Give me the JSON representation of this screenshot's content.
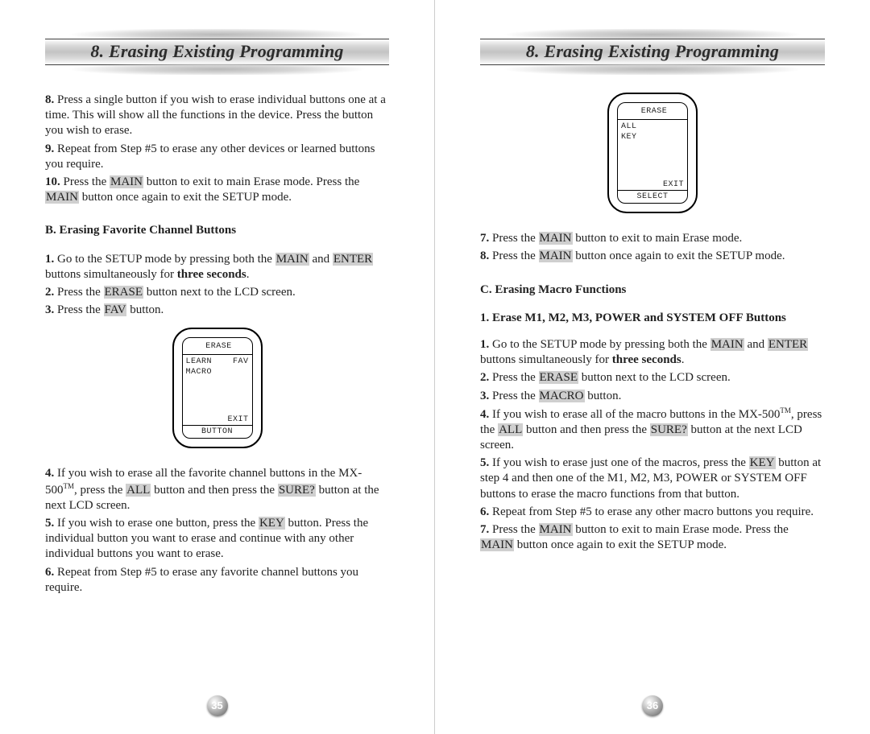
{
  "chapter_title": "8. Erasing Existing Programming",
  "colors": {
    "highlight_bg": "#cfcfcf",
    "text": "#222222",
    "bar_border": "#3e3e3e",
    "bar_grad_light": "#fefefe",
    "bar_grad_mid": "#c3c3c3",
    "ball_light": "#fdfdfd",
    "ball_dark": "#555555"
  },
  "fonts": {
    "body_family": "Times New Roman",
    "body_size_pt": 11,
    "title_family": "Georgia",
    "title_size_pt": 17,
    "lcd_family": "Lucida Console",
    "lcd_size_pt": 7
  },
  "left": {
    "page_number": "35",
    "steps_a": [
      {
        "n": "8.",
        "t1": " Press a single button if you wish to erase individual buttons one at a time. This will show all the functions in the device. Press the button you wish to erase."
      },
      {
        "n": "9.",
        "t1": " Repeat from Step #5 to erase any other devices or learned buttons you require."
      },
      {
        "n": "10.",
        "t_parts": [
          " Press the ",
          {
            "hl": "MAIN"
          },
          " button to exit to main Erase mode. Press the ",
          {
            "hl": "MAIN"
          },
          " button once again to exit the SETUP mode."
        ]
      }
    ],
    "section_b_title": "B. Erasing Favorite Channel Buttons",
    "steps_b_top": [
      {
        "n": "1.",
        "t_parts": [
          " Go to the SETUP mode by pressing both the ",
          {
            "hl": "MAIN"
          },
          " and ",
          {
            "hl": "ENTER"
          },
          " buttons simultaneously for ",
          {
            "b": "three seconds"
          },
          "."
        ]
      },
      {
        "n": "2.",
        "t_parts": [
          " Press the ",
          {
            "hl": "ERASE"
          },
          " button next to the LCD screen."
        ]
      },
      {
        "n": "3.",
        "t_parts": [
          " Press the ",
          {
            "hl": "FAV"
          },
          " button."
        ]
      }
    ],
    "lcd1": {
      "title": "ERASE",
      "row1_left": "LEARN",
      "row1_right": "FAV",
      "row2_left": "MACRO",
      "exit": "EXIT",
      "bottom": "BUTTON"
    },
    "steps_b_bottom": [
      {
        "n": "4.",
        "t_parts": [
          " If you wish to erase all the favorite channel buttons in the MX-500",
          {
            "sup": "TM"
          },
          ", press the ",
          {
            "hl": "ALL"
          },
          " button and then press the ",
          {
            "hl": "SURE?"
          },
          " button at the next LCD screen."
        ]
      },
      {
        "n": "5.",
        "t_parts": [
          " If you wish to erase one button, press the ",
          {
            "hl": "KEY"
          },
          " button. Press the individual button you want to erase and continue with any other individual buttons you want to erase."
        ]
      },
      {
        "n": "6.",
        "t_parts": [
          " Repeat from Step #5 to erase any favorite channel buttons you require."
        ]
      }
    ]
  },
  "right": {
    "page_number": "36",
    "lcd2": {
      "title": "ERASE",
      "row1_left": "ALL",
      "row2_left": "KEY",
      "exit": "EXIT",
      "bottom": "SELECT"
    },
    "steps_b_end": [
      {
        "n": "7.",
        "t_parts": [
          " Press the ",
          {
            "hl": "MAIN"
          },
          " button to exit to main Erase mode."
        ]
      },
      {
        "n": "8.",
        "t_parts": [
          " Press the ",
          {
            "hl": "MAIN"
          },
          " button once again to exit the SETUP mode."
        ]
      }
    ],
    "section_c_title": "C. Erasing Macro Functions",
    "section_c1_title": "1. Erase M1, M2, M3, POWER and SYSTEM OFF Buttons",
    "steps_c": [
      {
        "n": "1.",
        "t_parts": [
          " Go to the SETUP mode by pressing both the ",
          {
            "hl": "MAIN"
          },
          " and ",
          {
            "hl": "ENTER"
          },
          " buttons simultaneously for ",
          {
            "b": "three seconds"
          },
          "."
        ]
      },
      {
        "n": "2.",
        "t_parts": [
          " Press the ",
          {
            "hl": "ERASE"
          },
          " button next to the LCD screen."
        ]
      },
      {
        "n": "3.",
        "t_parts": [
          " Press the ",
          {
            "hl": "MACRO"
          },
          " button."
        ]
      },
      {
        "n": "4.",
        "t_parts": [
          " If you wish to erase all of the macro buttons in the MX-500",
          {
            "sup": "TM"
          },
          ", press the ",
          {
            "hl": "ALL"
          },
          " button and then press the ",
          {
            "hl": "SURE?"
          },
          " button at the next LCD screen."
        ]
      },
      {
        "n": "5.",
        "t_parts": [
          " If you wish to erase just one of the macros, press the ",
          {
            "hl": "KEY"
          },
          " button at step 4 and then one of the M1, M2, M3, POWER or SYSTEM OFF buttons to erase the macro functions from that button."
        ]
      },
      {
        "n": "6.",
        "t_parts": [
          " Repeat from Step #5 to erase any other macro buttons you require."
        ]
      },
      {
        "n": "7.",
        "t_parts": [
          " Press the ",
          {
            "hl": "MAIN"
          },
          " button to exit to main Erase mode. Press the ",
          {
            "hl": "MAIN"
          },
          " button once again to exit the SETUP mode."
        ]
      }
    ]
  }
}
